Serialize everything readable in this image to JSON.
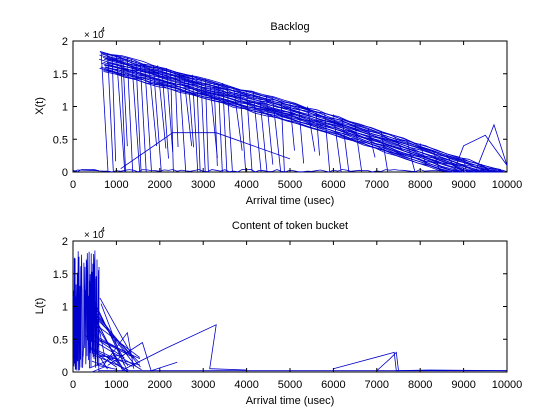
{
  "colors": {
    "series": "#0000cc",
    "axes": "#000000",
    "background": "#ffffff"
  },
  "chart_data": [
    {
      "type": "line",
      "title": "Backlog",
      "xlabel": "Arrival time (usec)",
      "ylabel": "X(t)",
      "exponent_label": "× 10",
      "exponent_power": "4",
      "xlim": [
        0,
        10000
      ],
      "ylim": [
        0,
        2
      ],
      "grid": false,
      "x_ticks": [
        "0",
        "1000",
        "2000",
        "3000",
        "4000",
        "5000",
        "6000",
        "7000",
        "8000",
        "9000",
        "10000"
      ],
      "y_ticks": [
        "0",
        "0.5",
        "1",
        "1.5",
        "2"
      ],
      "series": [
        {
          "envelope": {
            "x": [
              600,
              1000,
              2000,
              3000,
              4000,
              5000,
              6000,
              7000,
              8000,
              9000,
              10000
            ],
            "y": [
              1.87,
              1.8,
              1.62,
              1.44,
              1.26,
              1.08,
              0.88,
              0.66,
              0.44,
              0.22,
              0.02
            ]
          },
          "drops_x": [
            650,
            800,
            900,
            1000,
            1100,
            1150,
            1250,
            1350,
            1450,
            1550,
            1650,
            1750,
            1850,
            1950,
            2050,
            2150,
            2250,
            2350,
            2450,
            2550,
            2650,
            2750,
            2850,
            2950,
            3050,
            3150,
            3250,
            3350,
            3450,
            3550,
            3700,
            3850,
            4000,
            4150,
            4300,
            4450,
            4600,
            4800,
            5000,
            5200,
            5400,
            5600,
            5800,
            6000,
            6200,
            6500,
            6800,
            7100,
            7400,
            7700,
            8000,
            8300,
            8600,
            9000,
            9400,
            9800
          ],
          "spikes": [
            {
              "x": [
                0,
                100,
                600
              ],
              "y": [
                0,
                0.03,
                0.02
              ]
            },
            {
              "x": [
                1100,
                2300,
                3300,
                5000
              ],
              "y": [
                0.05,
                0.6,
                0.6,
                0.2
              ]
            },
            {
              "x": [
                8800,
                9000,
                9500,
                10000
              ],
              "y": [
                0.05,
                0.4,
                0.56,
                0.1
              ]
            },
            {
              "x": [
                9300,
                9700,
                10000
              ],
              "y": [
                0.05,
                0.72,
                0.1
              ]
            }
          ]
        }
      ]
    },
    {
      "type": "line",
      "title": "Content of token bucket",
      "xlabel": "Arrival time (usec)",
      "ylabel": "L(t)",
      "exponent_label": "× 10",
      "exponent_power": "4",
      "xlim": [
        0,
        10000
      ],
      "ylim": [
        0,
        2
      ],
      "grid": false,
      "x_ticks": [
        "0",
        "1000",
        "2000",
        "3000",
        "4000",
        "5000",
        "6000",
        "7000",
        "8000",
        "9000",
        "10000"
      ],
      "y_ticks": [
        "0",
        "0.5",
        "1",
        "1.5",
        "2"
      ],
      "series": [
        {
          "burst": {
            "x_start": 0,
            "x_end": 600,
            "peak": 1.87
          },
          "spikes": [
            {
              "x": [
                700,
                1250,
                1400
              ],
              "y": [
                0.1,
                0.6,
                0.05
              ]
            },
            {
              "x": [
                800,
                1600,
                1800,
                2400
              ],
              "y": [
                0.1,
                0.45,
                0.02,
                0.15
              ]
            },
            {
              "x": [
                1200,
                2100,
                3300,
                3150,
                4000
              ],
              "y": [
                0.05,
                0.35,
                0.72,
                0.05,
                0.03
              ]
            },
            {
              "x": [
                6000,
                7400,
                7450,
                8200,
                10000
              ],
              "y": [
                0.05,
                0.3,
                0.02,
                0.03,
                0.02
              ]
            },
            {
              "x": [
                7000,
                7300,
                7450,
                7500
              ],
              "y": [
                0.02,
                0.2,
                0.3,
                0.02
              ]
            },
            {
              "x": [
                600,
                10000
              ],
              "y": [
                0.02,
                0.02
              ]
            }
          ]
        }
      ]
    }
  ]
}
